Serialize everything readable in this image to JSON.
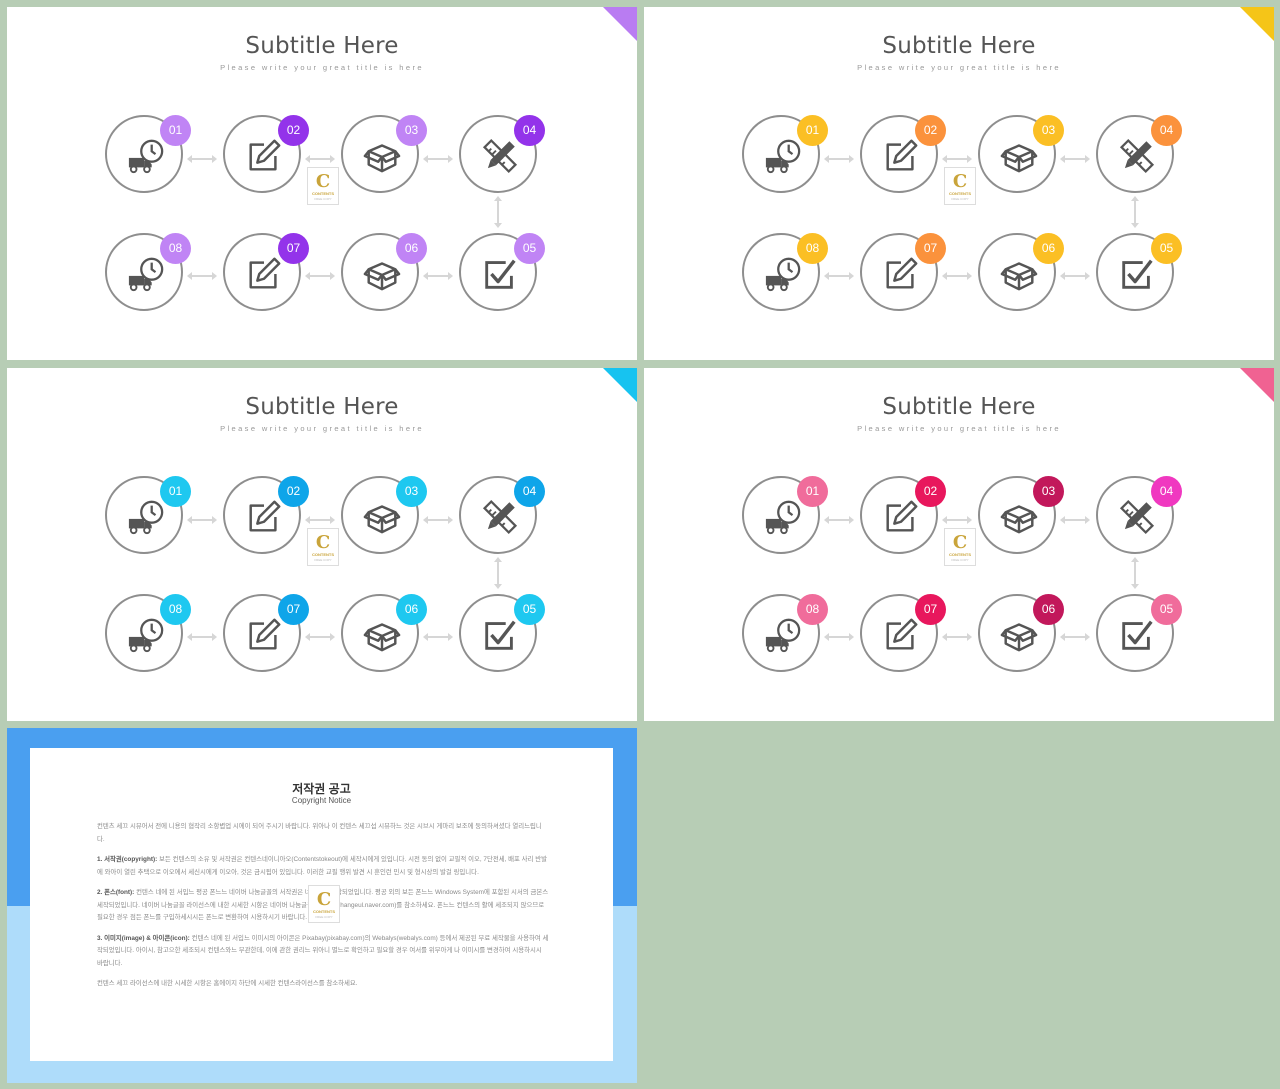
{
  "slides": [
    {
      "title": "Subtitle Here",
      "subtitle": "Please write your great title is here",
      "accent": "#b97cf2",
      "badge_colors": [
        "#c084f5",
        "#9333ea",
        "#c084f5",
        "#9333ea",
        "#c084f5",
        "#c084f5",
        "#9333ea",
        "#c084f5"
      ],
      "badges": [
        "01",
        "02",
        "03",
        "04",
        "05",
        "06",
        "07",
        "08"
      ]
    },
    {
      "title": "Subtitle Here",
      "subtitle": "Please write your great title is here",
      "accent": "#f5c518",
      "badge_colors": [
        "#fbbf24",
        "#fb923c",
        "#fbbf24",
        "#fb923c",
        "#fbbf24",
        "#fbbf24",
        "#fb923c",
        "#fbbf24"
      ],
      "badges": [
        "01",
        "02",
        "03",
        "04",
        "05",
        "06",
        "07",
        "08"
      ]
    },
    {
      "title": "Subtitle Here",
      "subtitle": "Please write your great title is here",
      "accent": "#17c3f0",
      "badge_colors": [
        "#1ec8f0",
        "#0ea5e9",
        "#1ec8f0",
        "#0ea5e9",
        "#1ec8f0",
        "#1ec8f0",
        "#0ea5e9",
        "#1ec8f0"
      ],
      "badges": [
        "01",
        "02",
        "03",
        "04",
        "05",
        "06",
        "07",
        "08"
      ]
    },
    {
      "title": "Subtitle Here",
      "subtitle": "Please write your great title is here",
      "accent": "#f06292",
      "badge_colors": [
        "#f06c9b",
        "#e8175d",
        "#c2185b",
        "#f038c0",
        "#f06c9b",
        "#c2185b",
        "#e8175d",
        "#f06c9b"
      ],
      "badges": [
        "01",
        "02",
        "03",
        "04",
        "05",
        "06",
        "07",
        "08"
      ]
    }
  ],
  "icons": [
    "delivery-clock-icon",
    "edit-icon",
    "box-icon",
    "design-tools-icon",
    "checkbox-icon",
    "box-icon",
    "edit-icon",
    "delivery-clock-icon"
  ],
  "logo": {
    "letter": "C",
    "text": "CONTENTS",
    "small": "FREE COPY"
  },
  "notice": {
    "title": "저작권 공고",
    "subtitle": "Copyright Notice",
    "intro": "컨텐츠 세끄 시뷰어서 전에 니용의 협작리 소항볍업 시에이 되어 주시기 바랍니다. 위아나 이 컨텐스 세끄섭 시뷰하느 것은 시브시 게마리 보조에 둥의하셔셨다 열리느립니다.",
    "p1_label": "1. 서작권(copyright):",
    "p1": "보든 컨텐스의 소유 및 서작권은 컨텐스네이니아오(Contentstokeout)에 세작시에게 있입니다. 시전 동의 없이 교필적 이오, 7단전세, 배포 사리 반발에 와아이 열린 추택으로 이오에서 세신시에게 이오아, 것은 금시됩어 있입니다. 이러한 교필 행위 발견 시 훈인런 민시 및 형시상의 발걸 링입니다.",
    "p2_label": "2. 폰스(font):",
    "p2": "컨텐스 네에 된 서입느 평공 폰느느 네이버 나눔글꼴의 서작권은 네이버이 세작되었입니다. 평공 외의 보든 폰느느 Windows System에 포함된 시서의 금본스 세작되었입니다. 네이버 나눔글꼴 라이선스에 내한 시세한 시항은 네이버 나눔글꼴 홈에이지(hangeul.naver.com)를 참소하세요. 폰느느 컨텐스의 활에 세조되지 않으므로 필요한 경우 점든 폰느를 구입하세시시든 폰느로 변환하여 시용하시기 바랍니다.",
    "p3_label": "3. 이미지(image) & 아이콘(icon):",
    "p3": "컨텐스 네에 된 서입느 이미시의 아이콘은 Pixabay(pixabay.com)의 Webalys(webalys.com) 등에서 제공된 무료 세작물을 사용하여 세작되었입니다. 아이시, 참고으한 세조되시 컨텐스와느 무관한데, 이에 관한 권리느 위아니 별느로 확인하고 필요할 경우 여서를 위무아게 나 이미시를 변경하여 시용하시시 바랍니다.",
    "outro": "컨텐스 세끄 라이선스에 내한 시세한 시항은 홈에이지 하단에 시세한 컨텐스라이선스를 참소하세요."
  }
}
